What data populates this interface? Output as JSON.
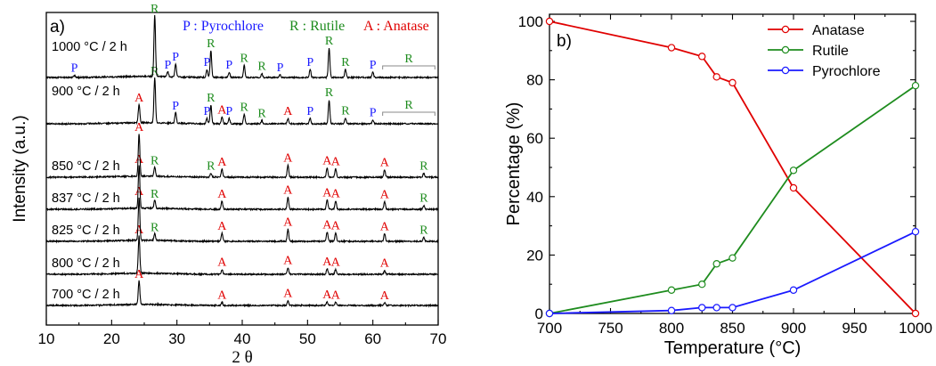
{
  "chart_data": [
    {
      "type": "line",
      "panel_label": "a)",
      "xlabel": "2 θ",
      "ylabel": "Intensity (a.u.)",
      "xlim": [
        10,
        70
      ],
      "xticks": [
        10,
        20,
        30,
        40,
        50,
        60,
        70
      ],
      "legend": [
        {
          "label": "P : Pyrochlore",
          "color": "#1a1aff"
        },
        {
          "label": "R : Rutile",
          "color": "#1e8c1e"
        },
        {
          "label": "A : Anatase",
          "color": "#e00000"
        }
      ],
      "series": [
        {
          "name": "700 °C / 2 h",
          "peaks": [
            {
              "x": 24.2,
              "h": 0.9,
              "lbl": "A"
            },
            {
              "x": 36.9,
              "h": 0.12,
              "lbl": "A"
            },
            {
              "x": 47.0,
              "h": 0.18,
              "lbl": "A"
            },
            {
              "x": 53.0,
              "h": 0.14,
              "lbl": "A"
            },
            {
              "x": 54.3,
              "h": 0.12,
              "lbl": "A"
            },
            {
              "x": 61.8,
              "h": 0.1,
              "lbl": "A"
            }
          ]
        },
        {
          "name": "800 °C / 2 h",
          "peaks": [
            {
              "x": 24.2,
              "h": 1.4,
              "lbl": "A"
            },
            {
              "x": 36.9,
              "h": 0.18,
              "lbl": "A"
            },
            {
              "x": 47.0,
              "h": 0.25,
              "lbl": "A"
            },
            {
              "x": 53.0,
              "h": 0.2,
              "lbl": "A"
            },
            {
              "x": 54.3,
              "h": 0.18,
              "lbl": "A"
            },
            {
              "x": 61.8,
              "h": 0.15,
              "lbl": "A"
            }
          ]
        },
        {
          "name": "825 °C / 2 h",
          "peaks": [
            {
              "x": 24.2,
              "h": 1.6,
              "lbl": "A"
            },
            {
              "x": 26.6,
              "h": 0.25,
              "lbl": "R"
            },
            {
              "x": 36.9,
              "h": 0.3,
              "lbl": "A"
            },
            {
              "x": 47.0,
              "h": 0.45,
              "lbl": "A"
            },
            {
              "x": 53.0,
              "h": 0.35,
              "lbl": "A"
            },
            {
              "x": 54.3,
              "h": 0.32,
              "lbl": "A"
            },
            {
              "x": 61.8,
              "h": 0.28,
              "lbl": "A"
            },
            {
              "x": 67.8,
              "h": 0.15,
              "lbl": "R"
            }
          ]
        },
        {
          "name": "837 °C / 2 h",
          "peaks": [
            {
              "x": 24.2,
              "h": 1.6,
              "lbl": "A"
            },
            {
              "x": 26.6,
              "h": 0.3,
              "lbl": "R"
            },
            {
              "x": 36.9,
              "h": 0.3,
              "lbl": "A"
            },
            {
              "x": 47.0,
              "h": 0.45,
              "lbl": "A"
            },
            {
              "x": 53.0,
              "h": 0.35,
              "lbl": "A"
            },
            {
              "x": 54.3,
              "h": 0.32,
              "lbl": "A"
            },
            {
              "x": 61.8,
              "h": 0.28,
              "lbl": "A"
            },
            {
              "x": 67.8,
              "h": 0.15,
              "lbl": "R"
            }
          ]
        },
        {
          "name": "850 °C / 2 h",
          "peaks": [
            {
              "x": 24.2,
              "h": 1.6,
              "lbl": "A"
            },
            {
              "x": 26.6,
              "h": 0.35,
              "lbl": "R"
            },
            {
              "x": 35.2,
              "h": 0.15,
              "lbl": "R"
            },
            {
              "x": 36.9,
              "h": 0.3,
              "lbl": "A"
            },
            {
              "x": 47.0,
              "h": 0.45,
              "lbl": "A"
            },
            {
              "x": 53.0,
              "h": 0.35,
              "lbl": "A"
            },
            {
              "x": 54.3,
              "h": 0.32,
              "lbl": "A"
            },
            {
              "x": 61.8,
              "h": 0.28,
              "lbl": "A"
            },
            {
              "x": 67.8,
              "h": 0.15,
              "lbl": "R"
            }
          ]
        },
        {
          "name": "900 °C / 2 h",
          "peaks": [
            {
              "x": 24.2,
              "h": 0.7,
              "lbl": "A"
            },
            {
              "x": 26.6,
              "h": 1.7,
              "lbl": "R"
            },
            {
              "x": 29.8,
              "h": 0.4,
              "lbl": "P"
            },
            {
              "x": 34.6,
              "h": 0.2,
              "lbl": "P"
            },
            {
              "x": 35.2,
              "h": 0.7,
              "lbl": "R"
            },
            {
              "x": 36.9,
              "h": 0.25,
              "lbl": "A"
            },
            {
              "x": 38.0,
              "h": 0.2,
              "lbl": "P"
            },
            {
              "x": 40.3,
              "h": 0.35,
              "lbl": "R"
            },
            {
              "x": 43.0,
              "h": 0.12,
              "lbl": "R"
            },
            {
              "x": 47.0,
              "h": 0.2,
              "lbl": "A"
            },
            {
              "x": 50.4,
              "h": 0.2,
              "lbl": "P"
            },
            {
              "x": 53.3,
              "h": 0.9,
              "lbl": "R"
            },
            {
              "x": 55.8,
              "h": 0.22,
              "lbl": "R"
            },
            {
              "x": 60.0,
              "h": 0.15,
              "lbl": "P"
            }
          ]
        },
        {
          "name": "1000 °C / 2 h",
          "peaks": [
            {
              "x": 14.3,
              "h": 0.08,
              "lbl": "P"
            },
            {
              "x": 26.6,
              "h": 2.3,
              "lbl": "R"
            },
            {
              "x": 28.6,
              "h": 0.2,
              "lbl": "P"
            },
            {
              "x": 29.8,
              "h": 0.5,
              "lbl": "P"
            },
            {
              "x": 34.6,
              "h": 0.3,
              "lbl": "P"
            },
            {
              "x": 35.2,
              "h": 1.0,
              "lbl": "R"
            },
            {
              "x": 38.0,
              "h": 0.2,
              "lbl": "P"
            },
            {
              "x": 40.3,
              "h": 0.45,
              "lbl": "R"
            },
            {
              "x": 43.0,
              "h": 0.15,
              "lbl": "R"
            },
            {
              "x": 45.8,
              "h": 0.1,
              "lbl": "P"
            },
            {
              "x": 50.4,
              "h": 0.3,
              "lbl": "P"
            },
            {
              "x": 53.3,
              "h": 1.1,
              "lbl": "R"
            },
            {
              "x": 55.8,
              "h": 0.3,
              "lbl": "R"
            },
            {
              "x": 60.0,
              "h": 0.2,
              "lbl": "P"
            }
          ]
        }
      ],
      "bracket_label": "R",
      "peak_colors": {
        "A": "#e00000",
        "R": "#1e8c1e",
        "P": "#1a1aff"
      }
    },
    {
      "type": "line",
      "panel_label": "b)",
      "xlabel": "Temperature (°C)",
      "ylabel": "Percentage (%)",
      "xlim": [
        700,
        1000
      ],
      "ylim": [
        0,
        100
      ],
      "xticks": [
        700,
        750,
        800,
        850,
        900,
        950,
        1000
      ],
      "yticks": [
        0,
        20,
        40,
        60,
        80,
        100
      ],
      "legend_position": "top-right",
      "x": [
        700,
        800,
        825,
        837,
        850,
        900,
        1000
      ],
      "series": [
        {
          "name": "Anatase",
          "color": "#e00000",
          "values": [
            100,
            91,
            88,
            81,
            79,
            43,
            0
          ]
        },
        {
          "name": "Rutile",
          "color": "#1e8c1e",
          "values": [
            0,
            8,
            10,
            17,
            19,
            49,
            78
          ]
        },
        {
          "name": "Pyrochlore",
          "color": "#1a1aff",
          "values": [
            0,
            1,
            2,
            2,
            2,
            8,
            28
          ]
        }
      ]
    }
  ]
}
